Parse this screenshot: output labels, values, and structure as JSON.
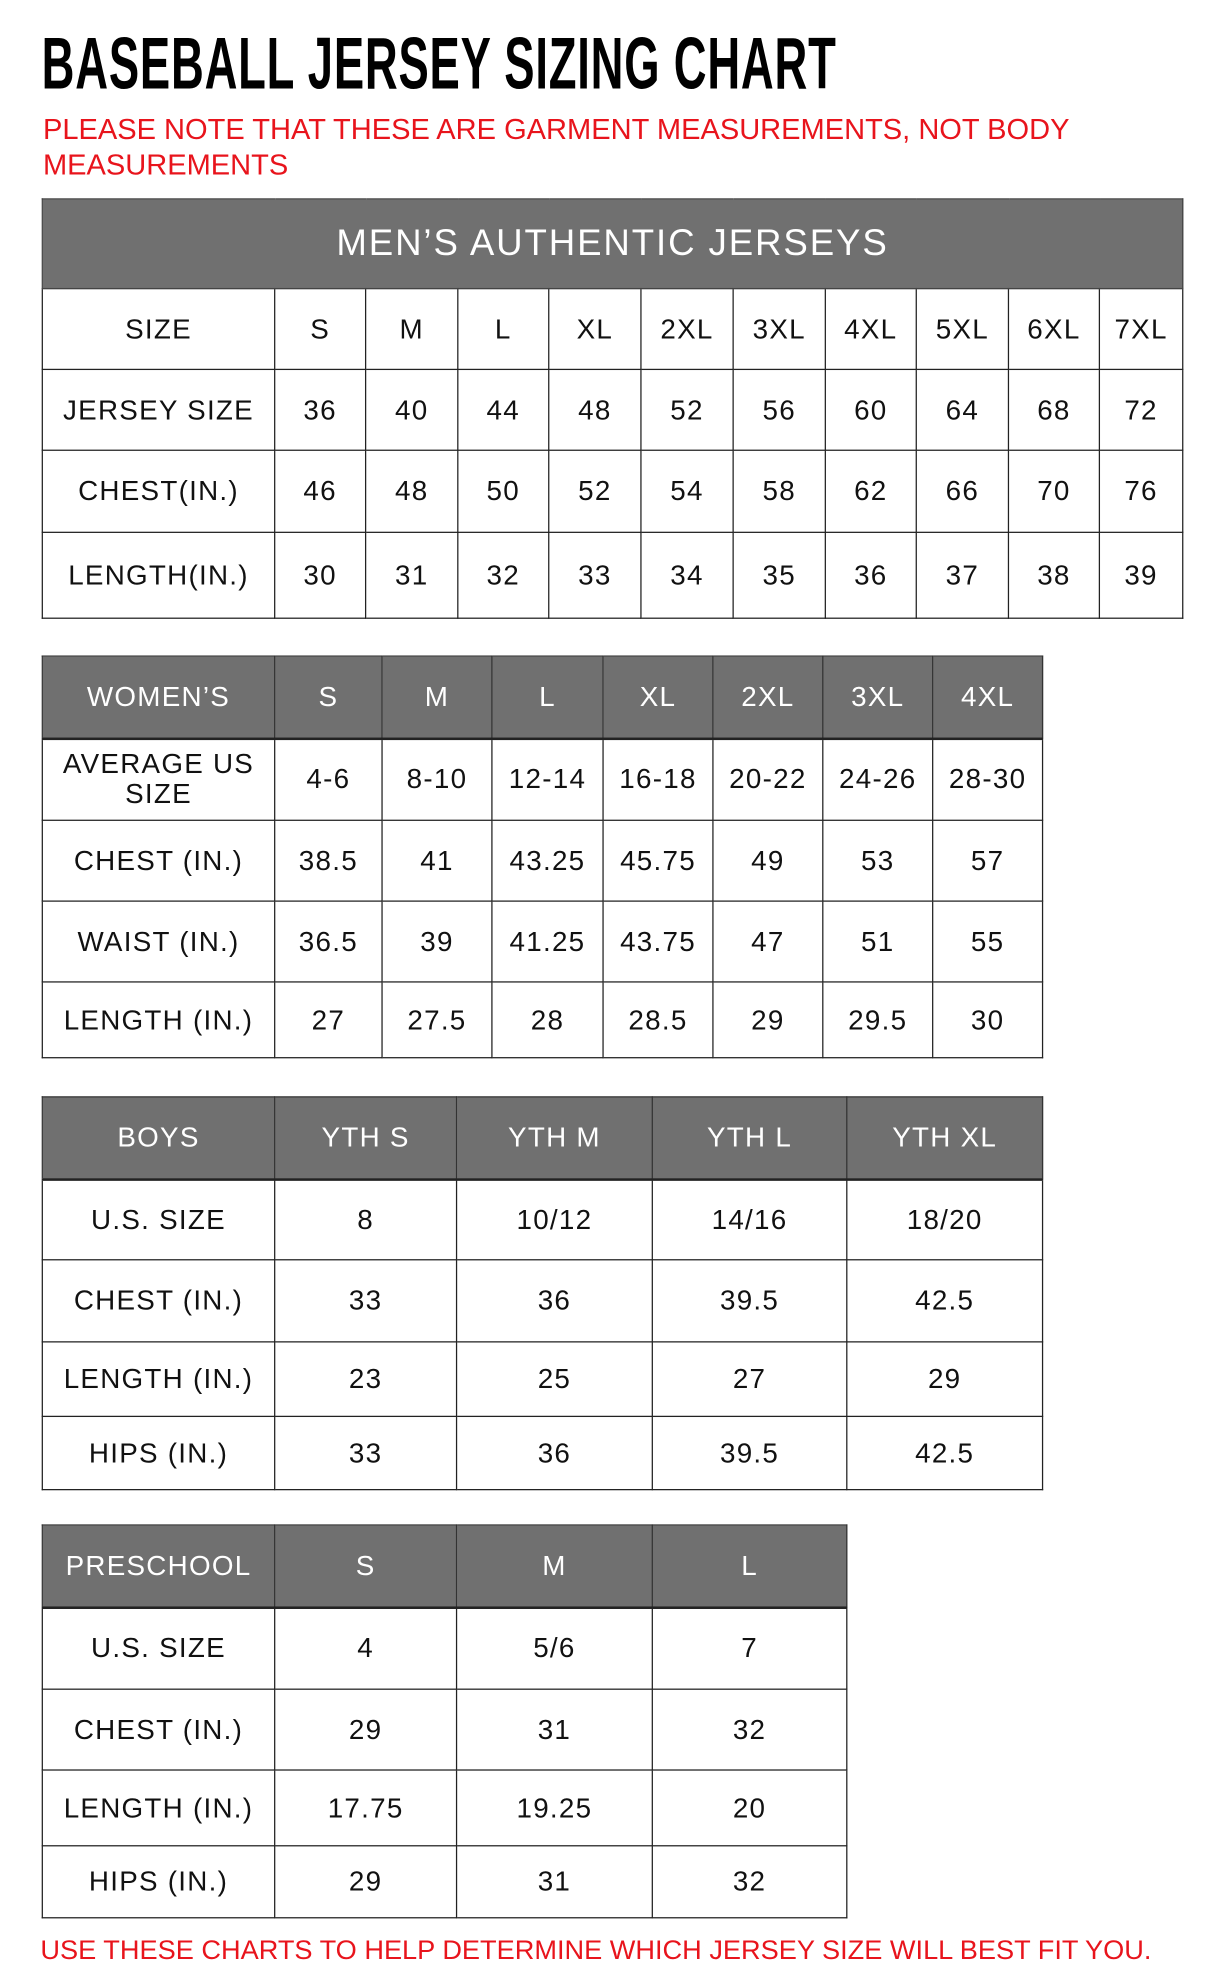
{
  "title": "BASEBALL JERSEY SIZING CHART",
  "note": "PLEASE NOTE THAT THESE ARE GARMENT MEASUREMENTS, NOT BODY MEASUREMENTS",
  "footer": "USE THESE CHARTS TO HELP DETERMINE WHICH JERSEY SIZE WILL BEST FIT YOU.",
  "colors": {
    "header_bg": "#707070",
    "note_red": "#e8141c"
  },
  "tables": [
    {
      "banner": "MEN’S AUTHENTIC JERSEYS",
      "header": [
        "SIZE",
        "S",
        "M",
        "L",
        "XL",
        "2XL",
        "3XL",
        "4XL",
        "5XL",
        "6XL",
        "7XL"
      ],
      "header_style": "plain",
      "rows": [
        [
          "JERSEY SIZE",
          "36",
          "40",
          "44",
          "48",
          "52",
          "56",
          "60",
          "64",
          "68",
          "72"
        ],
        [
          "CHEST(IN.)",
          "46",
          "48",
          "50",
          "52",
          "54",
          "58",
          "62",
          "66",
          "70",
          "76"
        ],
        [
          "LENGTH(IN.)",
          "30",
          "31",
          "32",
          "33",
          "34",
          "35",
          "36",
          "37",
          "38",
          "39"
        ]
      ]
    },
    {
      "header": [
        "WOMEN’S",
        "S",
        "M",
        "L",
        "XL",
        "2XL",
        "3XL",
        "4XL"
      ],
      "header_style": "grey",
      "rows": [
        [
          "AVERAGE US SIZE",
          "4-6",
          "8-10",
          "12-14",
          "16-18",
          "20-22",
          "24-26",
          "28-30"
        ],
        [
          "CHEST (IN.)",
          "38.5",
          "41",
          "43.25",
          "45.75",
          "49",
          "53",
          "57"
        ],
        [
          "WAIST (IN.)",
          "36.5",
          "39",
          "41.25",
          "43.75",
          "47",
          "51",
          "55"
        ],
        [
          "LENGTH (IN.)",
          "27",
          "27.5",
          "28",
          "28.5",
          "29",
          "29.5",
          "30"
        ]
      ]
    },
    {
      "header": [
        "BOYS",
        "YTH S",
        "YTH M",
        "YTH L",
        "YTH XL"
      ],
      "header_style": "grey",
      "rows": [
        [
          "U.S. SIZE",
          "8",
          "10/12",
          "14/16",
          "18/20"
        ],
        [
          "CHEST (IN.)",
          "33",
          "36",
          "39.5",
          "42.5"
        ],
        [
          "LENGTH (IN.)",
          "23",
          "25",
          "27",
          "29"
        ],
        [
          "HIPS (IN.)",
          "33",
          "36",
          "39.5",
          "42.5"
        ]
      ]
    },
    {
      "header": [
        "PRESCHOOL",
        "S",
        "M",
        "L"
      ],
      "header_style": "grey",
      "rows": [
        [
          "U.S. SIZE",
          "4",
          "5/6",
          "7"
        ],
        [
          "CHEST (IN.)",
          "29",
          "31",
          "32"
        ],
        [
          "LENGTH (IN.)",
          "17.75",
          "19.25",
          "20"
        ],
        [
          "HIPS (IN.)",
          "29",
          "31",
          "32"
        ]
      ]
    }
  ]
}
